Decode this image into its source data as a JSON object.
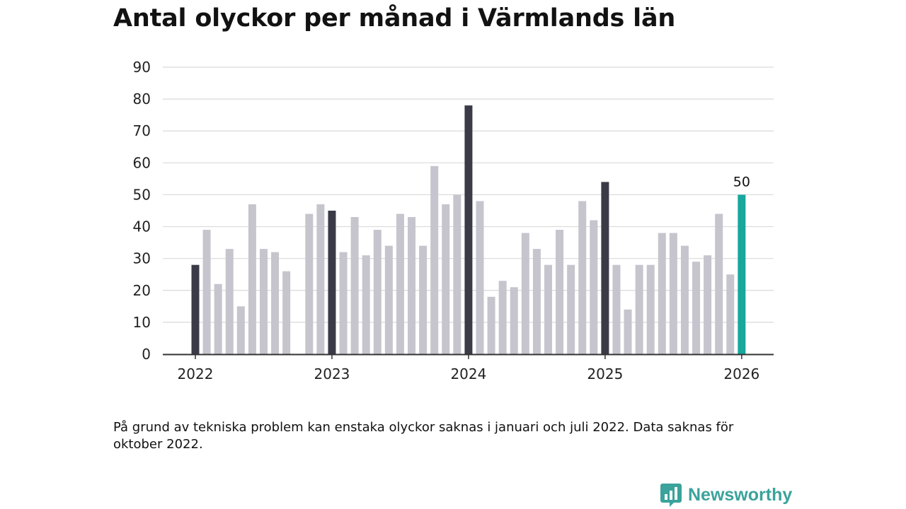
{
  "title": "Antal olyckor per månad i Värmlands län",
  "footnote": "På grund av tekniska problem kan enstaka olyckor saknas i januari och juli 2022. Data saknas för oktober 2022.",
  "brand": {
    "name": "Newsworthy",
    "icon": "newsworthy-logo-icon",
    "color": "#3ba39b"
  },
  "colors": {
    "regular_bar": "#c6c5cd",
    "january_bar": "#3b3b48",
    "latest_bar": "#17a79c",
    "gridline": "#dadada",
    "axis": "#333333",
    "text": "#222222"
  },
  "chart_data": {
    "type": "bar",
    "title": "Antal olyckor per månad i Värmlands län",
    "xlabel": "",
    "ylabel": "",
    "ylim": [
      0,
      90
    ],
    "yticks": [
      0,
      10,
      20,
      30,
      40,
      50,
      60,
      70,
      80,
      90
    ],
    "grid": true,
    "x_tick_labels": [
      {
        "label": "2022",
        "index": 0
      },
      {
        "label": "2023",
        "index": 12
      },
      {
        "label": "2024",
        "index": 24
      },
      {
        "label": "2025",
        "index": 36
      },
      {
        "label": "2026",
        "index": 48
      }
    ],
    "categories": [
      "2022-01",
      "2022-02",
      "2022-03",
      "2022-04",
      "2022-05",
      "2022-06",
      "2022-07",
      "2022-08",
      "2022-09",
      "2022-10",
      "2022-11",
      "2022-12",
      "2023-01",
      "2023-02",
      "2023-03",
      "2023-04",
      "2023-05",
      "2023-06",
      "2023-07",
      "2023-08",
      "2023-09",
      "2023-10",
      "2023-11",
      "2023-12",
      "2024-01",
      "2024-02",
      "2024-03",
      "2024-04",
      "2024-05",
      "2024-06",
      "2024-07",
      "2024-08",
      "2024-09",
      "2024-10",
      "2024-11",
      "2024-12",
      "2025-01",
      "2025-02",
      "2025-03",
      "2025-04",
      "2025-05",
      "2025-06",
      "2025-07",
      "2025-08",
      "2025-09",
      "2025-10",
      "2025-11",
      "2025-12",
      "2026-01"
    ],
    "values": [
      28,
      39,
      22,
      33,
      15,
      47,
      33,
      32,
      26,
      null,
      44,
      47,
      45,
      32,
      43,
      31,
      39,
      34,
      44,
      43,
      34,
      59,
      47,
      50,
      78,
      48,
      18,
      23,
      21,
      38,
      33,
      28,
      39,
      28,
      48,
      42,
      54,
      28,
      14,
      28,
      28,
      38,
      38,
      34,
      29,
      31,
      44,
      25,
      50
    ],
    "highlight": {
      "index": 48,
      "label": "50"
    }
  }
}
